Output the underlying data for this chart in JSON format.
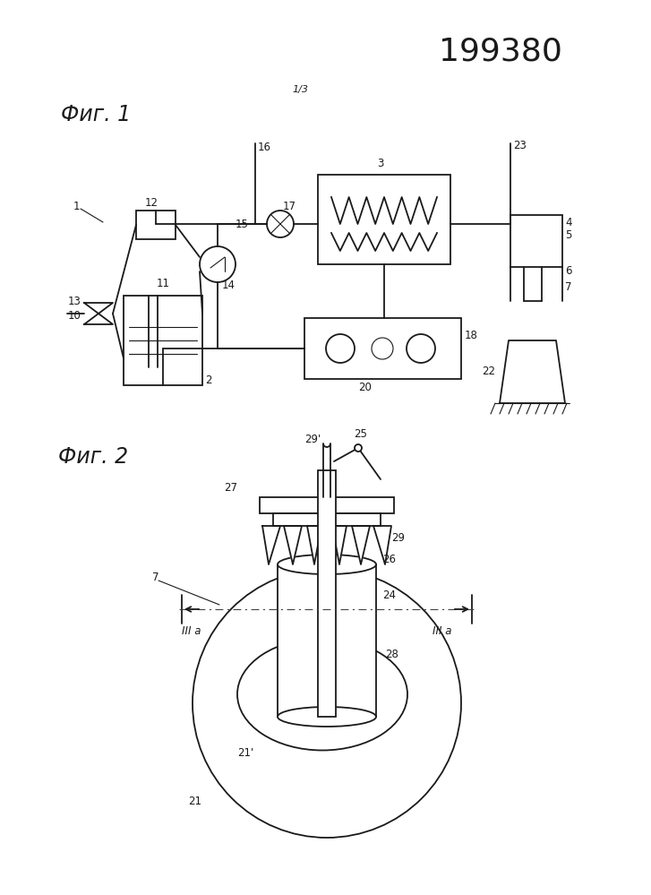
{
  "title_number": "199380",
  "page_label": "1/3",
  "fig1_label": "Фиг. 1",
  "fig2_label": "Фиг. 2",
  "background_color": "#ffffff",
  "line_color": "#1a1a1a",
  "lw": 1.3,
  "lw_thin": 0.8,
  "lw_thick": 2.0
}
